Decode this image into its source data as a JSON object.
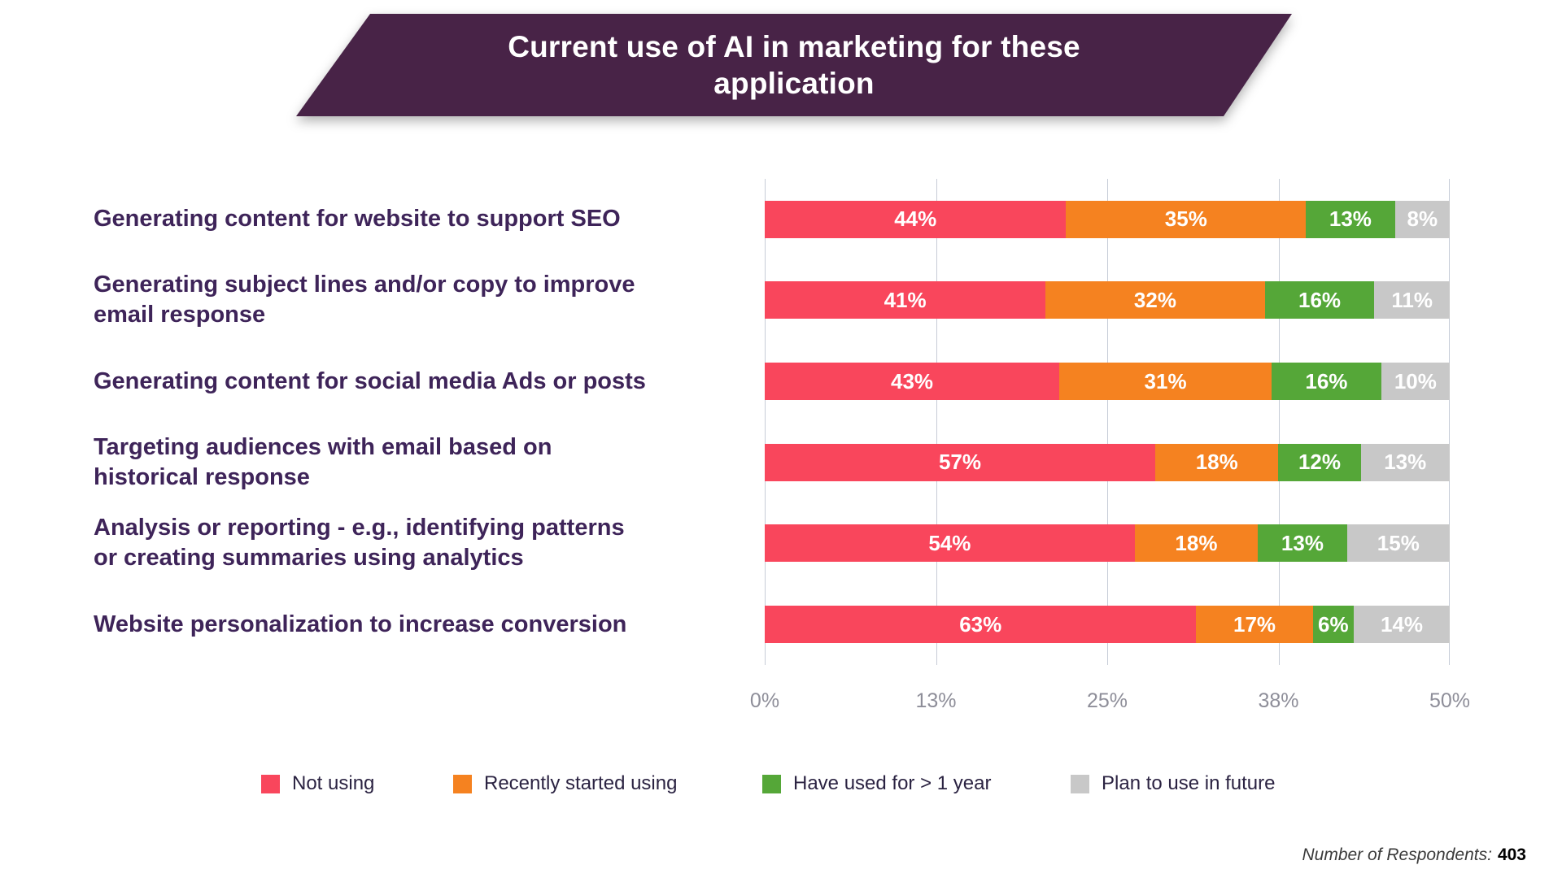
{
  "title": "Current use of AI in marketing for these\napplication",
  "footer": {
    "label": "Number of Respondents:",
    "value": "403"
  },
  "colors": {
    "banner": "#482347",
    "category_text": "#3E2459",
    "axis_text": "#8E8E99",
    "not_using": "#F9465C",
    "recently_started": "#F58220",
    "used_over_year": "#55A738",
    "plan_future": "#C8C8C8"
  },
  "chart_data": {
    "type": "bar",
    "orientation": "horizontal",
    "stacked": true,
    "grid": true,
    "legend_position": "bottom",
    "value_suffix": "%",
    "title": "Current use of AI in marketing for these application",
    "categories": [
      "Generating content for website to support SEO",
      "Generating subject lines and/or copy to improve\nemail response",
      "Generating content for social media Ads or posts",
      "Targeting audiences with email based on\nhistorical response",
      "Analysis or reporting - e.g., identifying patterns\nor creating summaries using analytics",
      "Website personalization to increase conversion"
    ],
    "series": [
      {
        "name": "Not using",
        "color": "#F9465C",
        "values": [
          44,
          41,
          43,
          57,
          54,
          63
        ]
      },
      {
        "name": "Recently started using",
        "color": "#F58220",
        "values": [
          35,
          32,
          31,
          18,
          18,
          17
        ]
      },
      {
        "name": "Have used for > 1 year",
        "color": "#55A738",
        "values": [
          13,
          16,
          16,
          12,
          13,
          6
        ]
      },
      {
        "name": "Plan to use in future",
        "color": "#C8C8C8",
        "values": [
          8,
          11,
          10,
          13,
          15,
          14
        ]
      }
    ],
    "x_ticks": [
      "0%",
      "13%",
      "25%",
      "38%",
      "50%"
    ],
    "x_range": [
      0,
      50
    ]
  }
}
